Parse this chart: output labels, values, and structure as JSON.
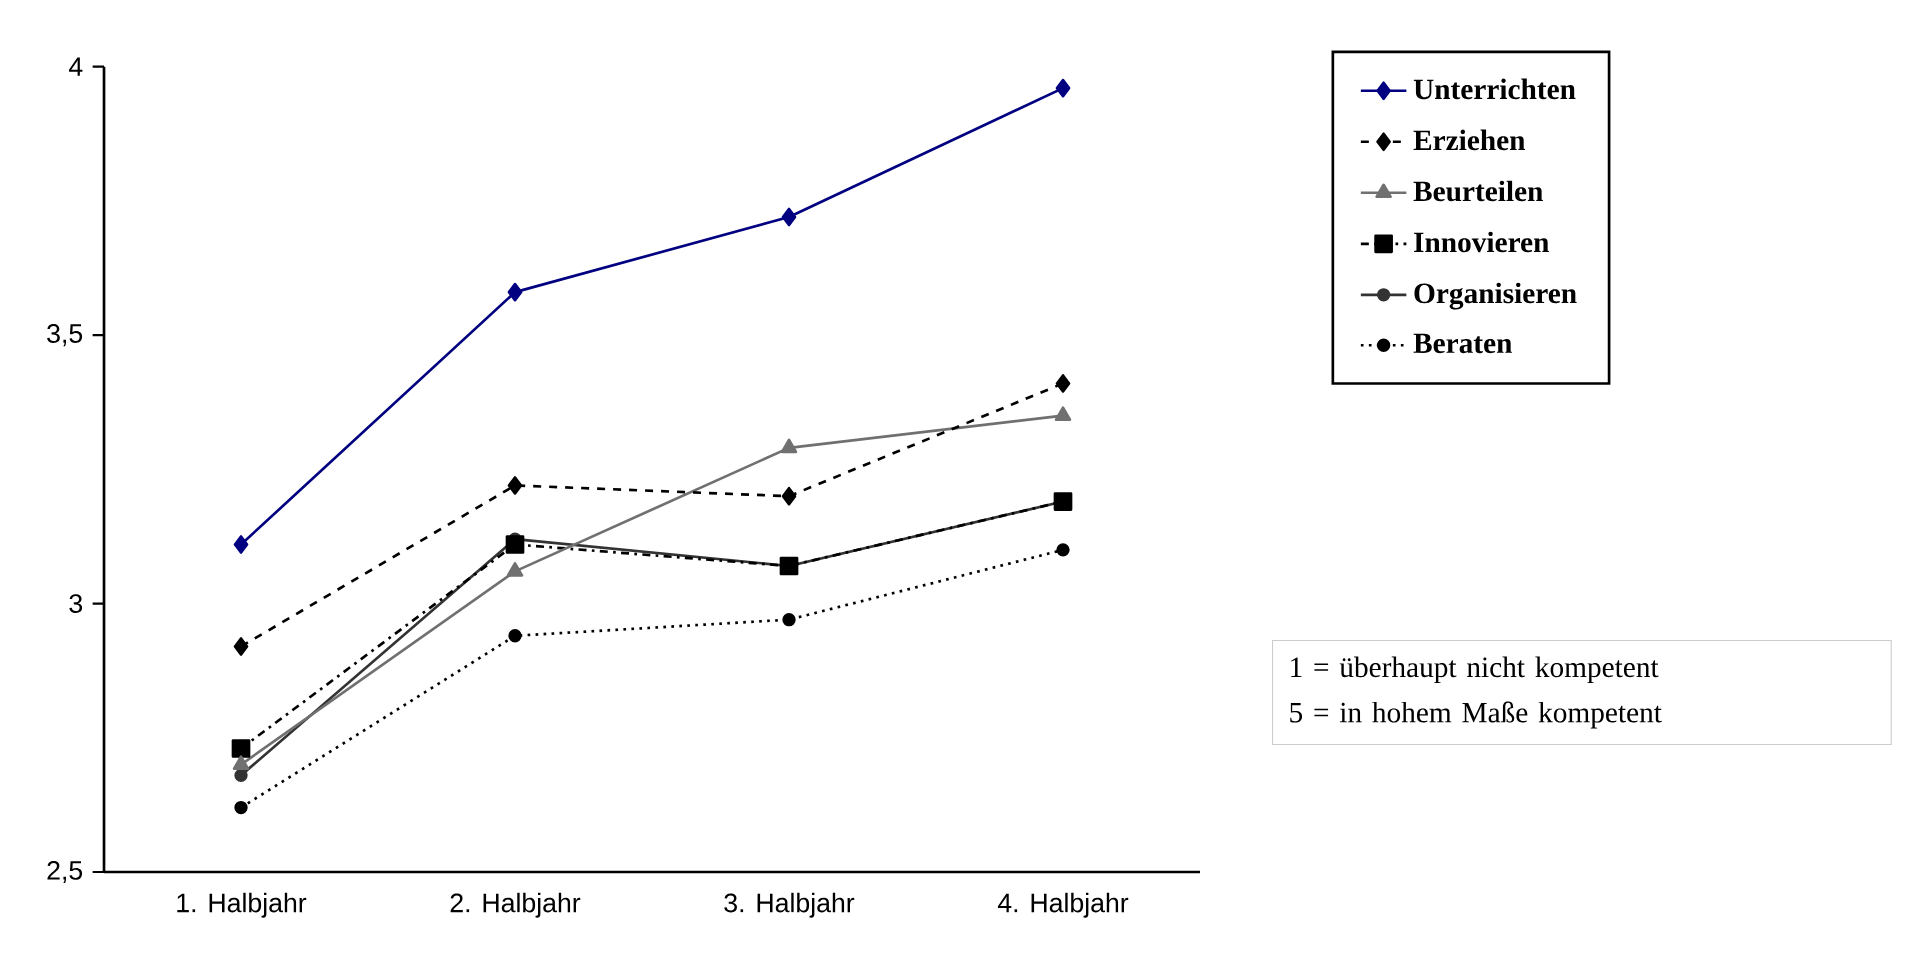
{
  "chart_data": {
    "type": "line",
    "categories": [
      "1. Halbjahr",
      "2. Halbjahr",
      "3. Halbjahr",
      "4. Halbjahr"
    ],
    "ylim": [
      2.5,
      4
    ],
    "yticks": [
      4,
      {
        "value": 3.5,
        "label": "3,5"
      },
      3,
      {
        "value": 2.5,
        "label": "2,5"
      }
    ],
    "legend": "right",
    "series": [
      {
        "name": "Unterrichten",
        "color": "#000080",
        "marker": "diamond",
        "line_style": "solid",
        "values": [
          3.11,
          3.58,
          3.72,
          3.96
        ]
      },
      {
        "name": "Erziehen",
        "color": "#000000",
        "marker": "diamond",
        "line_style": "dashed",
        "values": [
          2.92,
          3.22,
          3.2,
          3.41
        ]
      },
      {
        "name": "Beurteilen",
        "color": "#707070",
        "marker": "triangle",
        "line_style": "solid",
        "values": [
          2.7,
          3.06,
          3.29,
          3.35
        ]
      },
      {
        "name": "Innovieren",
        "color": "#000000",
        "marker": "square",
        "line_style": "dashdot",
        "values": [
          2.73,
          3.11,
          3.07,
          3.19
        ]
      },
      {
        "name": "Organisieren",
        "color": "#333333",
        "marker": "circle",
        "line_style": "solid",
        "values": [
          2.68,
          3.12,
          3.07,
          3.19
        ]
      },
      {
        "name": "Beraten",
        "color": "#000000",
        "marker": "circle",
        "line_style": "dotted",
        "values": [
          2.62,
          2.94,
          2.97,
          3.1
        ]
      }
    ],
    "annotations": [
      "1 = überhaupt nicht kompetent",
      "5 = in hohem Maße kompetent"
    ]
  }
}
